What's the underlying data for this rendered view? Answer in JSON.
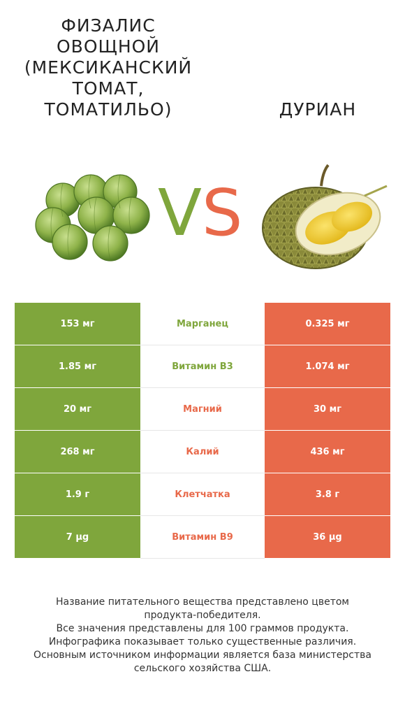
{
  "left_product": {
    "title_lines": [
      "Физалис",
      "овощной",
      "(мексиканский",
      "томат,",
      "томатильо)"
    ],
    "image_name": "tomatillo-image",
    "color": "#7fa63c"
  },
  "right_product": {
    "title": "Дуриан",
    "image_name": "durian-image",
    "color": "#e8694a"
  },
  "vs": {
    "v": "V",
    "s": "S"
  },
  "rows": [
    {
      "nutrient": "Марганец",
      "left": "153 мг",
      "right": "0.325 мг",
      "winner": "left"
    },
    {
      "nutrient": "Витамин B3",
      "left": "1.85 мг",
      "right": "1.074 мг",
      "winner": "left"
    },
    {
      "nutrient": "Магний",
      "left": "20 мг",
      "right": "30 мг",
      "winner": "right"
    },
    {
      "nutrient": "Калий",
      "left": "268 мг",
      "right": "436 мг",
      "winner": "right"
    },
    {
      "nutrient": "Клетчатка",
      "left": "1.9 г",
      "right": "3.8 г",
      "winner": "right"
    },
    {
      "nutrient": "Витамин B9",
      "left": "7 µg",
      "right": "36 µg",
      "winner": "right"
    }
  ],
  "footer_lines": [
    "Название питательного вещества представлено цветом",
    "продукта-победителя.",
    "Все значения представлены для 100 граммов продукта.",
    "Инфографика показывает только существенные различия.",
    "Основным источником информации является база министерства",
    "сельского хозяйства США."
  ]
}
